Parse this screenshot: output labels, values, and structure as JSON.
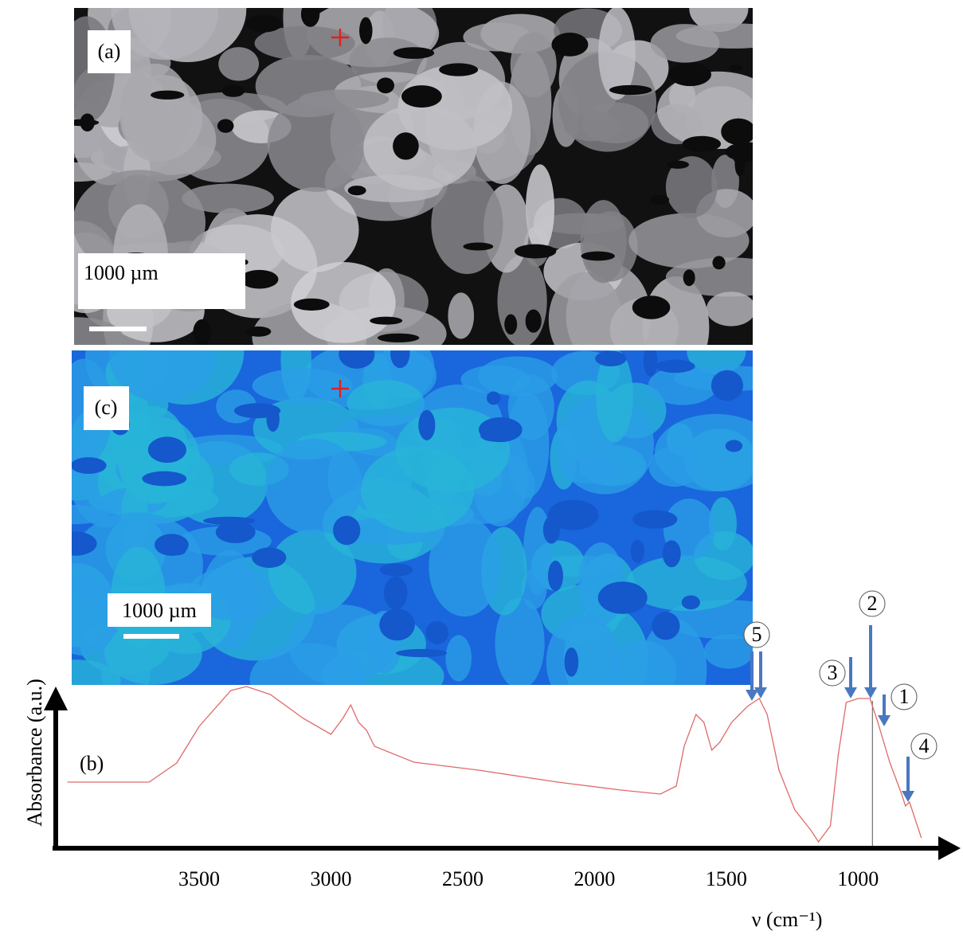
{
  "panels": {
    "a": {
      "label": "(a)",
      "scale": "1000 µm"
    },
    "c": {
      "label": "(c)",
      "scale": "1000 µm"
    }
  },
  "chart_data": {
    "type": "line",
    "label": "(b)",
    "x_label": "ν (cm⁻¹)",
    "y_label": "Absorbance (a.u.)",
    "x": [
      4000,
      3690,
      3585,
      3500,
      3380,
      3320,
      3230,
      3105,
      3000,
      2955,
      2925,
      2895,
      2865,
      2835,
      2685,
      2440,
      2140,
      1900,
      1750,
      1690,
      1660,
      1615,
      1585,
      1555,
      1525,
      1480,
      1420,
      1375,
      1345,
      1300,
      1240,
      1180,
      1150,
      1105,
      1075,
      1045,
      1000,
      955,
      925,
      880,
      835,
      820,
      805,
      760
    ],
    "series": [
      {
        "color": "#e06a6a",
        "values": [
          0.4,
          0.4,
          0.52,
          0.75,
          0.975,
          1.0,
          0.95,
          0.8,
          0.7,
          0.8,
          0.885,
          0.775,
          0.725,
          0.625,
          0.525,
          0.475,
          0.4,
          0.35,
          0.325,
          0.375,
          0.625,
          0.825,
          0.775,
          0.6,
          0.65,
          0.775,
          0.875,
          0.925,
          0.825,
          0.475,
          0.225,
          0.1,
          0.025,
          0.125,
          0.575,
          0.9,
          0.925,
          0.925,
          0.775,
          0.525,
          0.325,
          0.25,
          0.275,
          0.05
        ]
      }
    ],
    "xlim": [
      4020,
      750
    ],
    "ylim": [
      0,
      1
    ],
    "xticks": [
      3500,
      3000,
      2500,
      2000,
      1500,
      1000
    ],
    "annotations": [
      "1",
      "2",
      "3",
      "4",
      "5"
    ]
  }
}
